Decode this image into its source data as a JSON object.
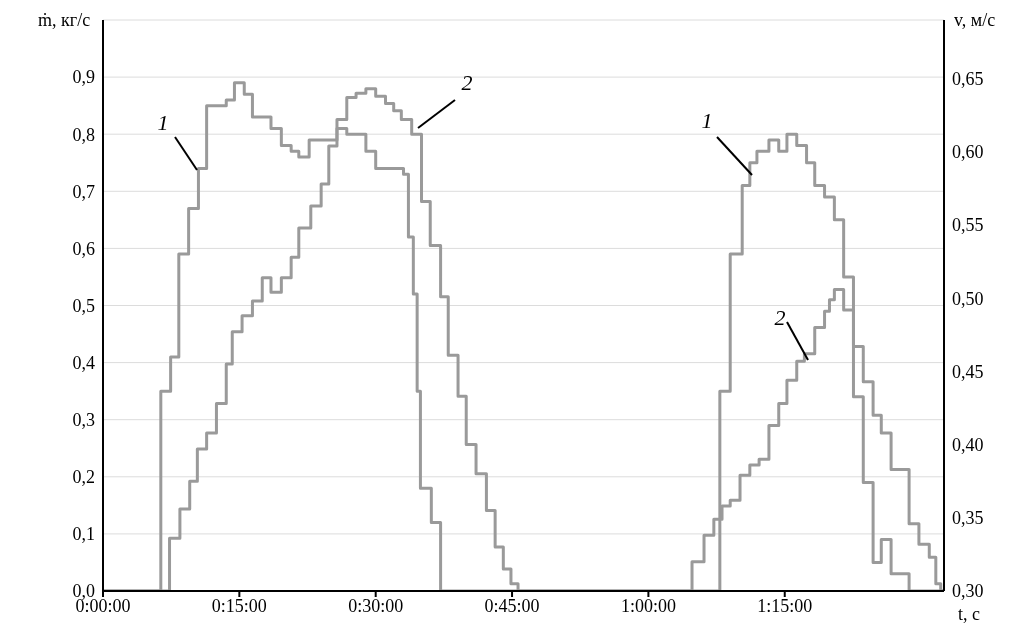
{
  "chart_data": {
    "type": "step",
    "xlabel": "t, с",
    "ylabel": "ṁ, кг/с",
    "y2label": "v, м/с",
    "xlim": [
      0,
      1.542
    ],
    "xticks": [
      {
        "value": 0,
        "label": "0:00:00"
      },
      {
        "value": 0.25,
        "label": "0:15:00"
      },
      {
        "value": 0.5,
        "label": "0:30:00"
      },
      {
        "value": 0.75,
        "label": "0:45:00"
      },
      {
        "value": 1,
        "label": "1:00:00"
      },
      {
        "value": 1.25,
        "label": "1:15:00"
      }
    ],
    "ylim": [
      0,
      1
    ],
    "yticks": [
      {
        "value": 0,
        "label": "0,0"
      },
      {
        "value": 0.1,
        "label": "0,1"
      },
      {
        "value": 0.2,
        "label": "0,2"
      },
      {
        "value": 0.3,
        "label": "0,3"
      },
      {
        "value": 0.4,
        "label": "0,4"
      },
      {
        "value": 0.5,
        "label": "0,5"
      },
      {
        "value": 0.6,
        "label": "0,6"
      },
      {
        "value": 0.7,
        "label": "0,7"
      },
      {
        "value": 0.8,
        "label": "0,8"
      },
      {
        "value": 0.9,
        "label": "0,9"
      }
    ],
    "y2lim": [
      0.3,
      0.69
    ],
    "y2ticks": [
      {
        "value": 0.3,
        "label": "0,30"
      },
      {
        "value": 0.35,
        "label": "0,35"
      },
      {
        "value": 0.4,
        "label": "0,40"
      },
      {
        "value": 0.45,
        "label": "0,45"
      },
      {
        "value": 0.5,
        "label": "0,50"
      },
      {
        "value": 0.55,
        "label": "0,55"
      },
      {
        "value": 0.6,
        "label": "0,60"
      },
      {
        "value": 0.65,
        "label": "0,65"
      }
    ],
    "grid": true,
    "marker": "none",
    "line_style": "solid",
    "series": [
      {
        "color": "#9a9a9a",
        "x": [
          0,
          0.106,
          0.124,
          0.139,
          0.157,
          0.175,
          0.19,
          0.208,
          0.226,
          0.241,
          0.259,
          0.274,
          0.308,
          0.327,
          0.345,
          0.359,
          0.378,
          0.4,
          0.414,
          0.429,
          0.447,
          0.465,
          0.482,
          0.5,
          0.533,
          0.551,
          0.56,
          0.569,
          0.576,
          0.582,
          0.602,
          0.619,
          1.131,
          1.15,
          1.172,
          1.186,
          1.199,
          1.221,
          1.239,
          1.254,
          1.272,
          1.29,
          1.305,
          1.323,
          1.341,
          1.358,
          1.376,
          1.394,
          1.412,
          1.427,
          1.445,
          1.478,
          1.542
        ],
        "values": [
          0,
          0.35,
          0.41,
          0.59,
          0.67,
          0.74,
          0.85,
          0.85,
          0.86,
          0.89,
          0.87,
          0.83,
          0.81,
          0.78,
          0.77,
          0.76,
          0.79,
          0.79,
          0.79,
          0.81,
          0.8,
          0.8,
          0.77,
          0.74,
          0.74,
          0.73,
          0.62,
          0.52,
          0.35,
          0.18,
          0.12,
          0,
          0.35,
          0.59,
          0.71,
          0.75,
          0.77,
          0.79,
          0.77,
          0.8,
          0.78,
          0.75,
          0.71,
          0.69,
          0.65,
          0.55,
          0.34,
          0.19,
          0.05,
          0.09,
          0.03,
          0,
          0
        ]
      },
      {
        "color": "#9a9a9a",
        "axis": "y2",
        "x": [
          0,
          0.122,
          0.141,
          0.159,
          0.173,
          0.19,
          0.208,
          0.226,
          0.237,
          0.255,
          0.274,
          0.292,
          0.308,
          0.327,
          0.345,
          0.359,
          0.381,
          0.4,
          0.414,
          0.429,
          0.447,
          0.464,
          0.482,
          0.5,
          0.518,
          0.533,
          0.547,
          0.566,
          0.584,
          0.6,
          0.619,
          0.633,
          0.651,
          0.666,
          0.684,
          0.703,
          0.719,
          0.734,
          0.748,
          0.761,
          1.08,
          1.102,
          1.12,
          1.135,
          1.15,
          1.168,
          1.186,
          1.203,
          1.221,
          1.239,
          1.254,
          1.272,
          1.286,
          1.305,
          1.323,
          1.332,
          1.341,
          1.358,
          1.376,
          1.394,
          1.412,
          1.427,
          1.445,
          1.478,
          1.496,
          1.515,
          1.527,
          1.536,
          1.542
        ],
        "values": [
          0.3,
          0.336,
          0.356,
          0.375,
          0.397,
          0.408,
          0.428,
          0.455,
          0.477,
          0.488,
          0.498,
          0.514,
          0.504,
          0.514,
          0.528,
          0.548,
          0.563,
          0.578,
          0.604,
          0.622,
          0.637,
          0.64,
          0.643,
          0.638,
          0.633,
          0.628,
          0.622,
          0.612,
          0.566,
          0.536,
          0.501,
          0.461,
          0.433,
          0.4,
          0.38,
          0.355,
          0.33,
          0.315,
          0.305,
          0.3,
          0.32,
          0.338,
          0.349,
          0.358,
          0.362,
          0.379,
          0.386,
          0.39,
          0.413,
          0.428,
          0.444,
          0.457,
          0.462,
          0.48,
          0.491,
          0.499,
          0.506,
          0.492,
          0.467,
          0.443,
          0.42,
          0.408,
          0.383,
          0.346,
          0.332,
          0.323,
          0.305,
          0.3,
          0.3
        ]
      }
    ],
    "annotations": [
      "1",
      "2",
      "1",
      "2"
    ]
  }
}
